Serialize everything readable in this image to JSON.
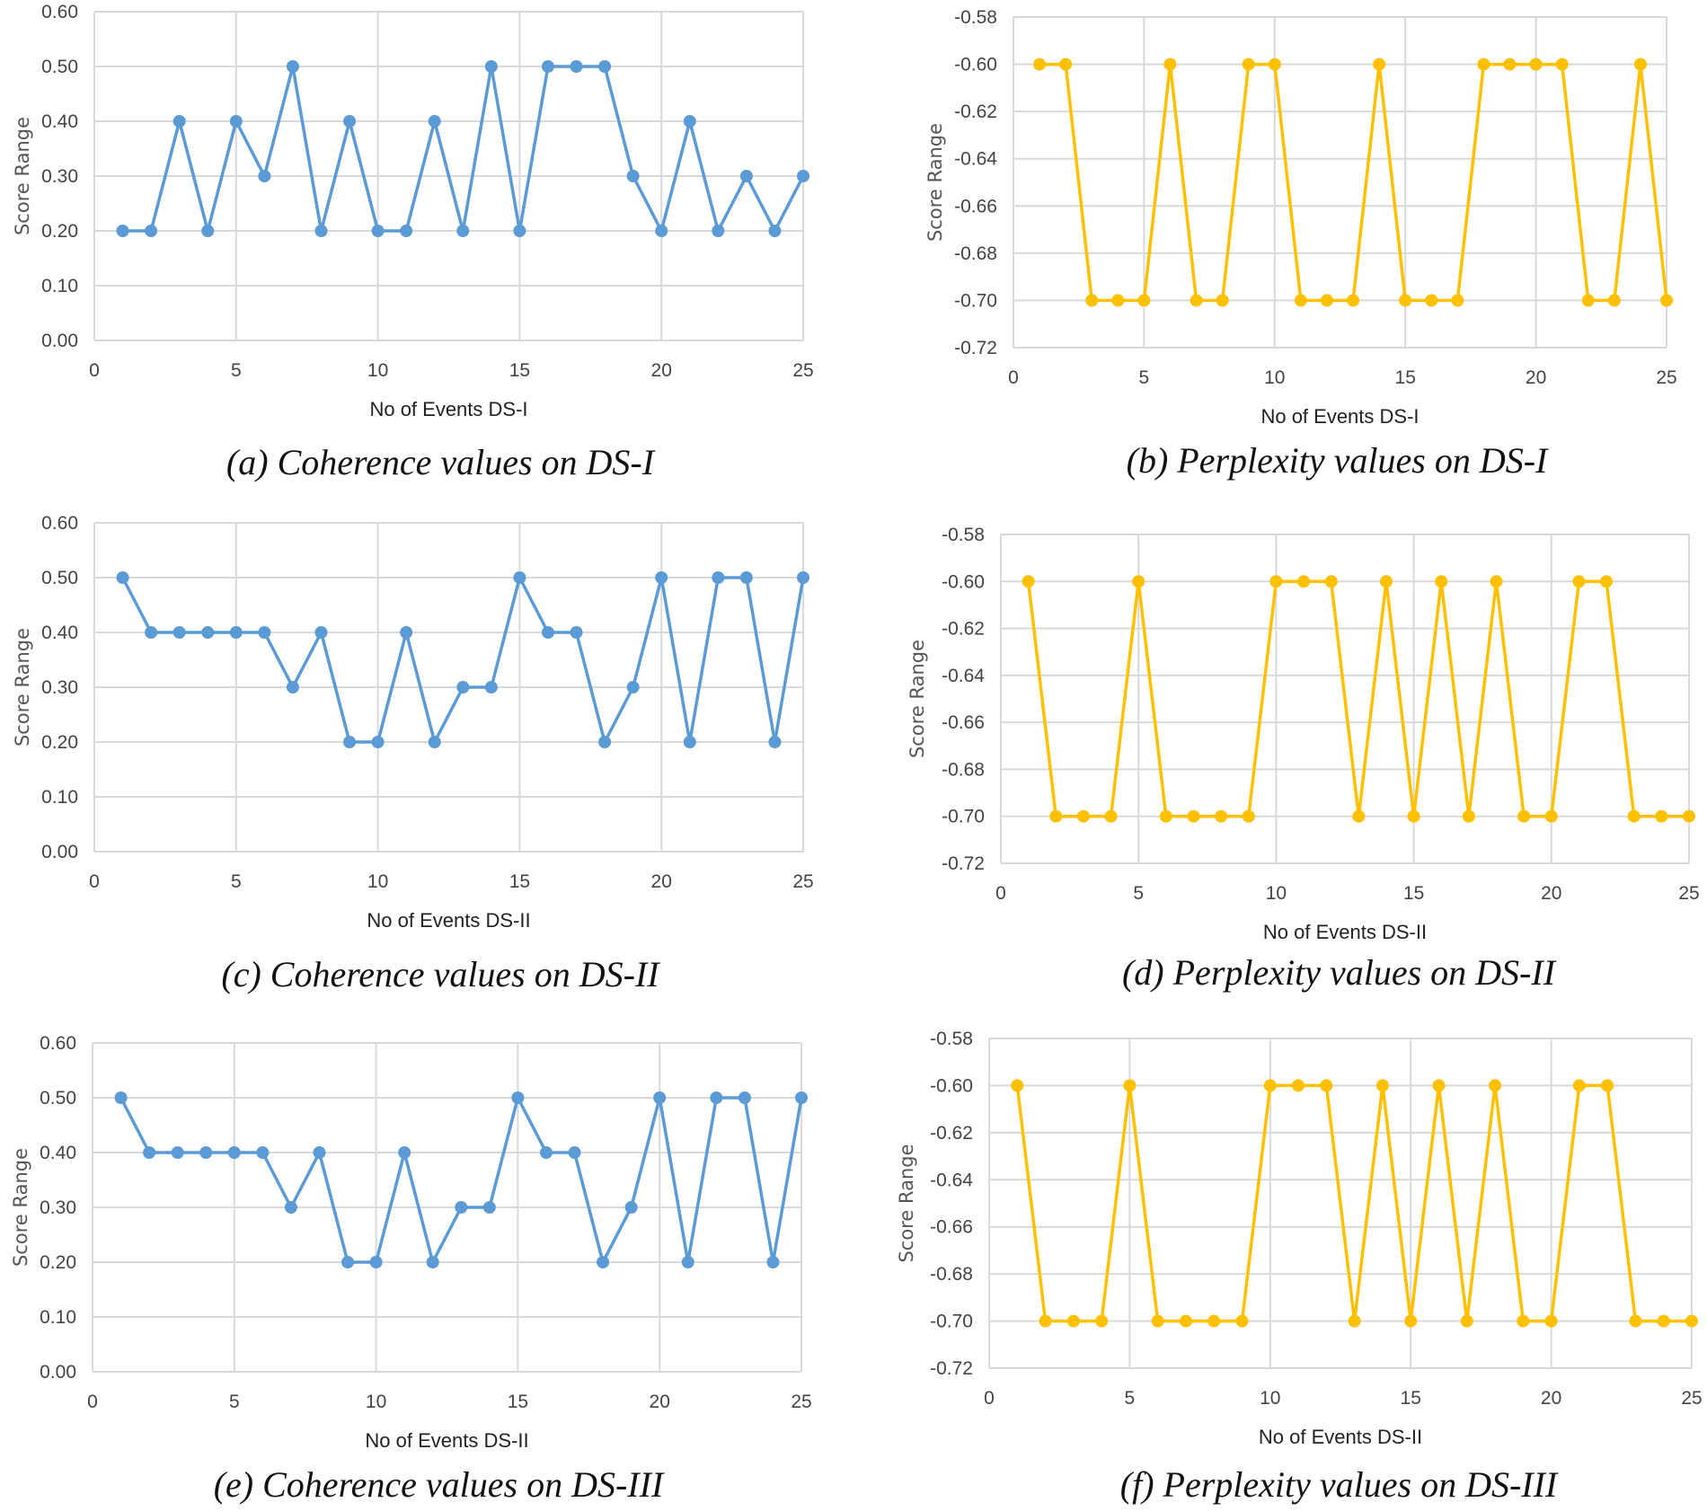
{
  "chart_data": [
    {
      "type": "line",
      "caption": "(a) Coherence values on DS-I",
      "xlabel": "No of Events DS-I",
      "ylabel": "Score Range",
      "xlim": [
        0,
        25
      ],
      "xticks": [
        0,
        5,
        10,
        15,
        20,
        25
      ],
      "ylim": [
        0,
        0.6
      ],
      "yticks": [
        "0.00",
        "0.10",
        "0.20",
        "0.30",
        "0.40",
        "0.50",
        "0.60"
      ],
      "grid": true,
      "color": "#5B9BD5",
      "x": [
        1,
        2,
        3,
        4,
        5,
        6,
        7,
        8,
        9,
        10,
        11,
        12,
        13,
        14,
        15,
        16,
        17,
        18,
        19,
        20,
        21,
        22,
        23,
        24,
        25
      ],
      "values": [
        0.2,
        0.2,
        0.4,
        0.2,
        0.4,
        0.3,
        0.5,
        0.2,
        0.4,
        0.2,
        0.2,
        0.4,
        0.2,
        0.5,
        0.2,
        0.5,
        0.5,
        0.5,
        0.3,
        0.2,
        0.4,
        0.2,
        0.3,
        0.2,
        0.3
      ]
    },
    {
      "type": "line",
      "caption": "(b) Perplexity values on DS-I",
      "xlabel": "No of Events DS-I",
      "ylabel": "Score Range",
      "xlim": [
        0,
        25
      ],
      "xticks": [
        0,
        5,
        10,
        15,
        20,
        25
      ],
      "ylim": [
        -0.72,
        -0.58
      ],
      "yticks": [
        "-0.72",
        "-0.70",
        "-0.68",
        "-0.66",
        "-0.64",
        "-0.62",
        "-0.60",
        "-0.58"
      ],
      "grid": true,
      "color": "#FFC000",
      "x": [
        1,
        2,
        3,
        4,
        5,
        6,
        7,
        8,
        9,
        10,
        11,
        12,
        13,
        14,
        15,
        16,
        17,
        18,
        19,
        20,
        21,
        22,
        23,
        24,
        25
      ],
      "values": [
        -0.6,
        -0.6,
        -0.7,
        -0.7,
        -0.7,
        -0.6,
        -0.7,
        -0.7,
        -0.6,
        -0.6,
        -0.7,
        -0.7,
        -0.7,
        -0.6,
        -0.7,
        -0.7,
        -0.7,
        -0.6,
        -0.6,
        -0.6,
        -0.6,
        -0.7,
        -0.7,
        -0.6,
        -0.7
      ]
    },
    {
      "type": "line",
      "caption": "(c) Coherence values on DS-II",
      "xlabel": "No of Events DS-II",
      "ylabel": "Score Range",
      "xlim": [
        0,
        25
      ],
      "xticks": [
        0,
        5,
        10,
        15,
        20,
        25
      ],
      "ylim": [
        0,
        0.6
      ],
      "yticks": [
        "0.00",
        "0.10",
        "0.20",
        "0.30",
        "0.40",
        "0.50",
        "0.60"
      ],
      "grid": true,
      "color": "#5B9BD5",
      "x": [
        1,
        2,
        3,
        4,
        5,
        6,
        7,
        8,
        9,
        10,
        11,
        12,
        13,
        14,
        15,
        16,
        17,
        18,
        19,
        20,
        21,
        22,
        23,
        24,
        25
      ],
      "values": [
        0.5,
        0.4,
        0.4,
        0.4,
        0.4,
        0.4,
        0.3,
        0.4,
        0.2,
        0.2,
        0.4,
        0.2,
        0.3,
        0.3,
        0.5,
        0.4,
        0.4,
        0.2,
        0.3,
        0.5,
        0.2,
        0.5,
        0.5,
        0.2,
        0.5
      ]
    },
    {
      "type": "line",
      "caption": "(d) Perplexity values on DS-II",
      "xlabel": "No of Events DS-II",
      "ylabel": "Score Range",
      "xlim": [
        0,
        25
      ],
      "xticks": [
        0,
        5,
        10,
        15,
        20,
        25
      ],
      "ylim": [
        -0.72,
        -0.58
      ],
      "yticks": [
        "-0.72",
        "-0.70",
        "-0.68",
        "-0.66",
        "-0.64",
        "-0.62",
        "-0.60",
        "-0.58"
      ],
      "grid": true,
      "color": "#FFC000",
      "x": [
        1,
        2,
        3,
        4,
        5,
        6,
        7,
        8,
        9,
        10,
        11,
        12,
        13,
        14,
        15,
        16,
        17,
        18,
        19,
        20,
        21,
        22,
        23,
        24,
        25
      ],
      "values": [
        -0.6,
        -0.7,
        -0.7,
        -0.7,
        -0.6,
        -0.7,
        -0.7,
        -0.7,
        -0.7,
        -0.6,
        -0.6,
        -0.6,
        -0.7,
        -0.6,
        -0.7,
        -0.6,
        -0.7,
        -0.6,
        -0.7,
        -0.7,
        -0.6,
        -0.6,
        -0.7,
        -0.7,
        -0.7
      ]
    },
    {
      "type": "line",
      "caption": "(e) Coherence values on DS-III",
      "xlabel": "No of Events DS-II",
      "ylabel": "Score Range",
      "xlim": [
        0,
        25
      ],
      "xticks": [
        0,
        5,
        10,
        15,
        20,
        25
      ],
      "ylim": [
        0,
        0.6
      ],
      "yticks": [
        "0.00",
        "0.10",
        "0.20",
        "0.30",
        "0.40",
        "0.50",
        "0.60"
      ],
      "grid": true,
      "color": "#5B9BD5",
      "x": [
        1,
        2,
        3,
        4,
        5,
        6,
        7,
        8,
        9,
        10,
        11,
        12,
        13,
        14,
        15,
        16,
        17,
        18,
        19,
        20,
        21,
        22,
        23,
        24,
        25
      ],
      "values": [
        0.5,
        0.4,
        0.4,
        0.4,
        0.4,
        0.4,
        0.3,
        0.4,
        0.2,
        0.2,
        0.4,
        0.2,
        0.3,
        0.3,
        0.5,
        0.4,
        0.4,
        0.2,
        0.3,
        0.5,
        0.2,
        0.5,
        0.5,
        0.2,
        0.5
      ]
    },
    {
      "type": "line",
      "caption": "(f) Perplexity values on DS-III",
      "xlabel": "No of Events DS-II",
      "ylabel": "Score Range",
      "xlim": [
        0,
        25
      ],
      "xticks": [
        0,
        5,
        10,
        15,
        20,
        25
      ],
      "ylim": [
        -0.72,
        -0.58
      ],
      "yticks": [
        "-0.72",
        "-0.70",
        "-0.68",
        "-0.66",
        "-0.64",
        "-0.62",
        "-0.60",
        "-0.58"
      ],
      "grid": true,
      "color": "#FFC000",
      "x": [
        1,
        2,
        3,
        4,
        5,
        6,
        7,
        8,
        9,
        10,
        11,
        12,
        13,
        14,
        15,
        16,
        17,
        18,
        19,
        20,
        21,
        22,
        23,
        24,
        25
      ],
      "values": [
        -0.6,
        -0.7,
        -0.7,
        -0.7,
        -0.6,
        -0.7,
        -0.7,
        -0.7,
        -0.7,
        -0.6,
        -0.6,
        -0.6,
        -0.7,
        -0.6,
        -0.7,
        -0.6,
        -0.7,
        -0.6,
        -0.7,
        -0.7,
        -0.6,
        -0.6,
        -0.7,
        -0.7,
        -0.7
      ]
    }
  ]
}
